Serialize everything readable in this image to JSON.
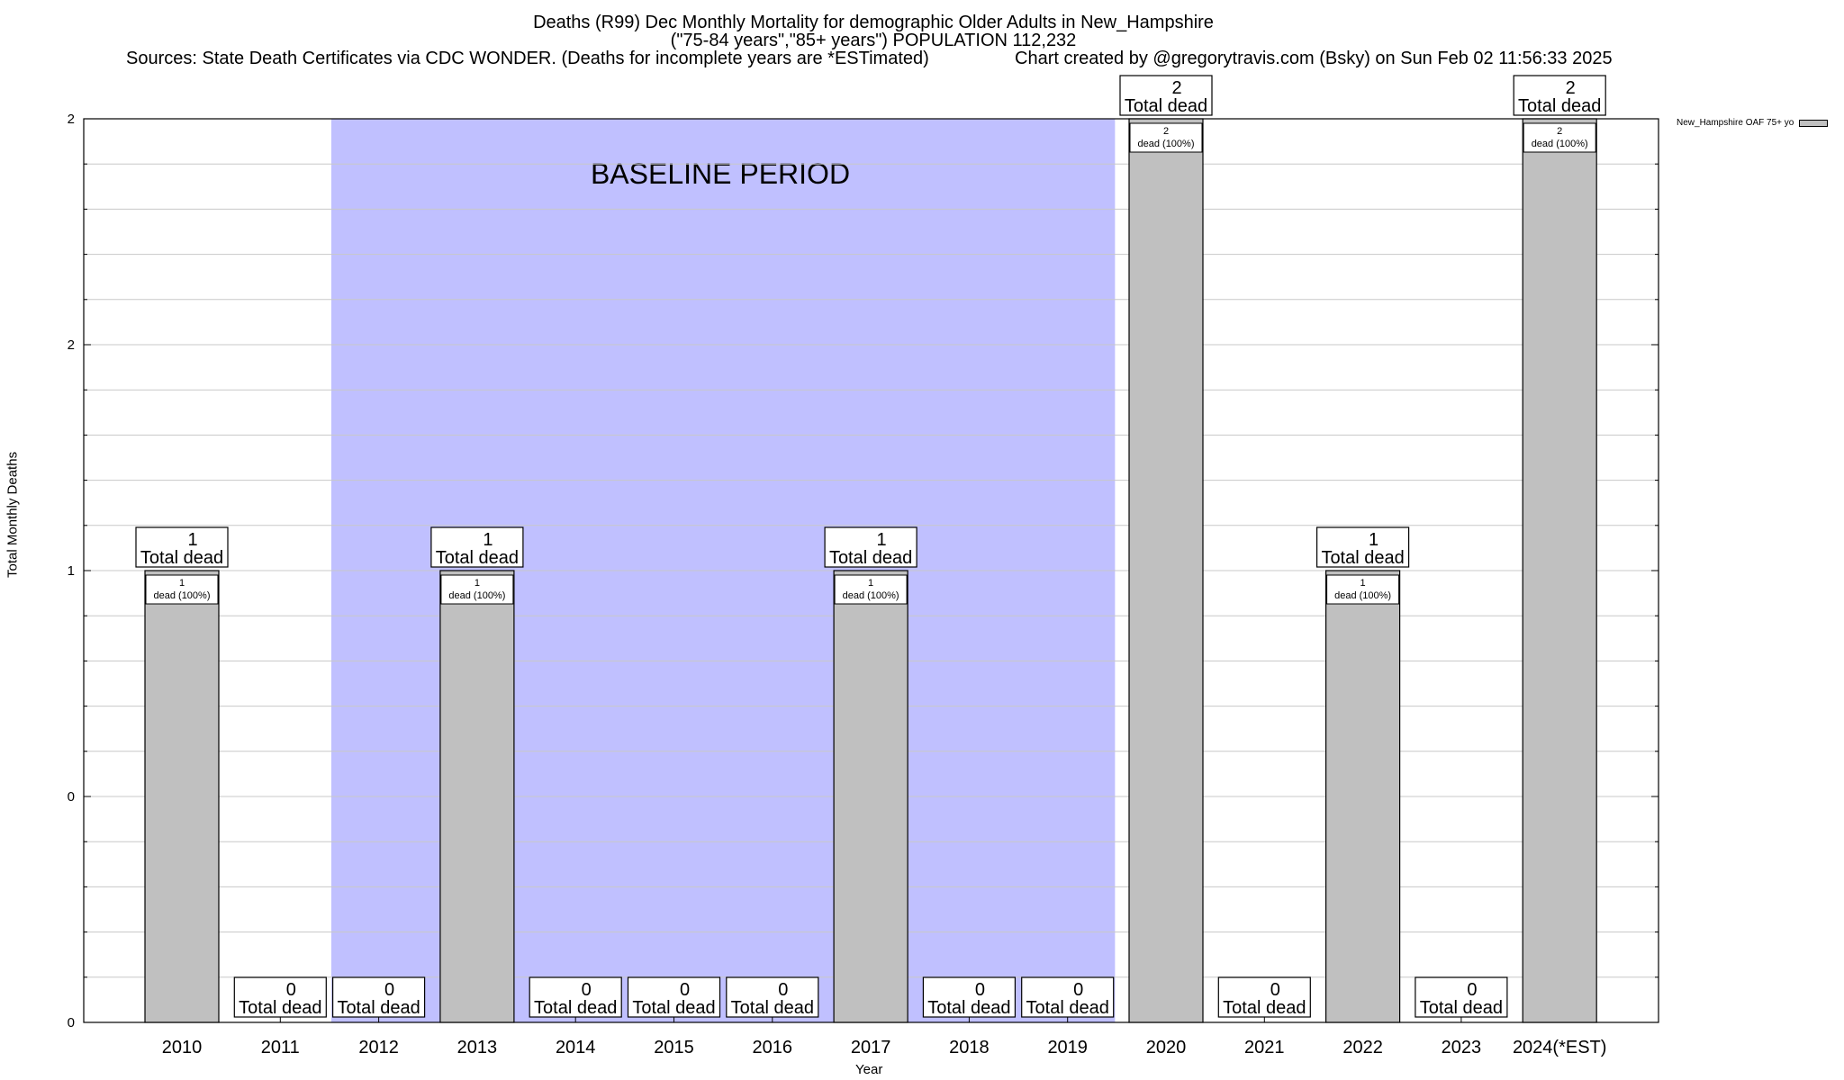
{
  "chart_data": {
    "type": "bar",
    "title": "Deaths (R99) Dec Monthly Mortality for demographic Older Adults in New_Hampshire",
    "subtitle": "(\"75-84 years\",\"85+ years\") POPULATION 112,232",
    "sources": "Sources: State Death Certificates via CDC WONDER. (Deaths for incomplete years are *ESTimated)",
    "credit": "Chart created by @gregorytravis.com (Bsky) on Sun Feb 02 11:56:33 2025",
    "xlabel": "Year",
    "ylabel": "Total Monthly Deaths",
    "categories": [
      "2010",
      "2011",
      "2012",
      "2013",
      "2014",
      "2015",
      "2016",
      "2017",
      "2018",
      "2019",
      "2020",
      "2021",
      "2022",
      "2023",
      "2024(*EST)"
    ],
    "series": [
      {
        "name": "New_Hampshire OAF 75+ yo",
        "values": [
          1,
          0,
          0,
          1,
          0,
          0,
          0,
          1,
          0,
          0,
          2,
          0,
          1,
          0,
          2
        ]
      }
    ],
    "total_label_text": "Total dead",
    "segment_labels": [
      "1\ndead (100%)",
      "",
      "",
      "1\ndead (100%)",
      "",
      "",
      "",
      "1\ndead (100%)",
      "",
      "",
      "2\ndead (100%)",
      "",
      "1\ndead (100%)",
      "",
      "2\ndead (100%)"
    ],
    "y_ticks": [
      "0",
      "0",
      "1",
      "2",
      "2"
    ],
    "ylim": [
      0,
      2
    ],
    "grid": true,
    "legend_position": "top-right",
    "baseline": {
      "label": "BASELINE PERIOD",
      "start": "2012",
      "end": "2019",
      "color": "#c0c0ff"
    },
    "bar_color": "#c0c0c0"
  }
}
